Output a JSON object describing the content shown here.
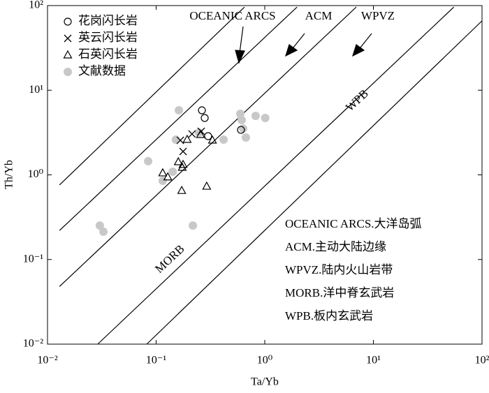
{
  "chart_data": {
    "type": "scatter",
    "x_label": "Ta/Yb",
    "y_label": "Th/Yb",
    "log_x": true,
    "log_y": true,
    "xlim": [
      0.01,
      100
    ],
    "ylim": [
      0.01,
      100
    ],
    "xticks": [
      {
        "value": 0.01,
        "label": "10⁻²"
      },
      {
        "value": 0.1,
        "label": "10⁻¹"
      },
      {
        "value": 1,
        "label": "10⁰"
      },
      {
        "value": 10,
        "label": "10¹"
      },
      {
        "value": 100,
        "label": "10²"
      }
    ],
    "yticks": [
      {
        "value": 0.01,
        "label": "10⁻²"
      },
      {
        "value": 0.1,
        "label": "10⁻¹"
      },
      {
        "value": 1,
        "label": "10⁰"
      },
      {
        "value": 10,
        "label": "10¹"
      },
      {
        "value": 100,
        "label": "10²"
      }
    ],
    "series": [
      {
        "name": "花岗闪长岩",
        "marker": "circle",
        "color": "#000000",
        "x": [
          0.264,
          0.28,
          0.301,
          0.604
        ],
        "values": [
          5.79,
          4.7,
          2.87,
          3.4
        ]
      },
      {
        "name": "英云闪长岩",
        "marker": "cross",
        "color": "#000000",
        "x": [
          0.167,
          0.177,
          0.214,
          0.26
        ],
        "values": [
          2.56,
          1.89,
          3.04,
          3.27
        ]
      },
      {
        "name": "石英闪长岩",
        "marker": "triangle",
        "color": "#000000",
        "x": [
          0.115,
          0.128,
          0.16,
          0.174,
          0.177,
          0.193,
          0.256,
          0.33,
          0.172,
          0.292
        ],
        "values": [
          1.05,
          0.94,
          1.42,
          1.22,
          1.32,
          2.61,
          2.98,
          2.56,
          0.65,
          0.73
        ]
      },
      {
        "name": "文献数据",
        "marker": "dot",
        "color": "#c8c8c8",
        "x": [
          0.162,
          0.596,
          0.613,
          0.824,
          1.01,
          0.67,
          0.632,
          0.152,
          0.0844,
          0.115,
          0.142,
          0.218,
          0.0303,
          0.0327,
          0.418,
          0.248
        ],
        "values": [
          5.79,
          5.27,
          4.44,
          4.98,
          4.7,
          2.76,
          3.53,
          2.61,
          1.45,
          0.85,
          1.09,
          0.252,
          0.252,
          0.213,
          2.61,
          3.16
        ]
      }
    ],
    "lines": [
      {
        "x": [
          0.0129,
          0.65
        ],
        "y": [
          0.76,
          96
        ]
      },
      {
        "x": [
          0.0129,
          1.98
        ],
        "y": [
          0.22,
          96
        ]
      },
      {
        "x": [
          0.0129,
          6.95
        ],
        "y": [
          0.048,
          96
        ]
      },
      {
        "x": [
          0.029,
          55
        ],
        "y": [
          0.01,
          96
        ]
      },
      {
        "x": [
          0.082,
          100
        ],
        "y": [
          0.01,
          66
        ]
      }
    ],
    "annotations": [
      "OCEANIC  ARCS",
      "ACM",
      "WPVZ",
      "MORB",
      "WPB"
    ],
    "notes": [
      "OCEANIC  ARCS.大洋岛弧",
      "ACM.主动大陆边缘",
      "WPVZ.陆内火山岩带",
      "MORB.洋中脊玄武岩",
      "WPB.板内玄武岩"
    ]
  }
}
